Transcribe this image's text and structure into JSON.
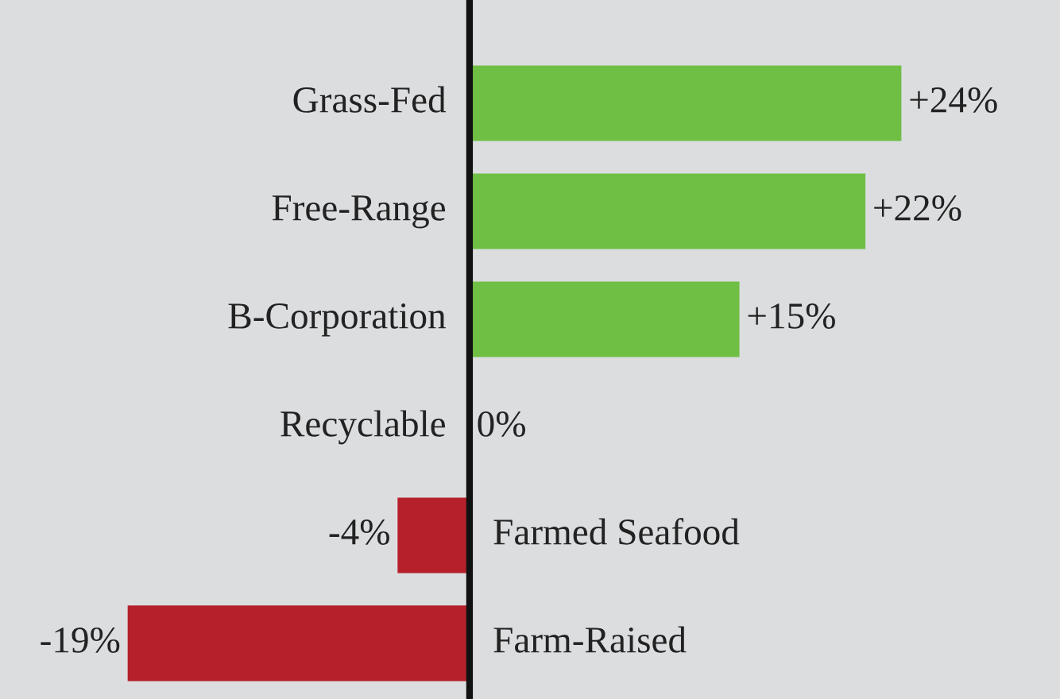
{
  "chart_data": {
    "type": "bar",
    "orientation": "horizontal",
    "categories": [
      "Grass-Fed",
      "Free-Range",
      "B-Corporation",
      "Recyclable",
      "Farmed Seafood",
      "Farm-Raised"
    ],
    "values": [
      24,
      22,
      15,
      0,
      -4,
      -19
    ],
    "colors": [
      "#6fbf44",
      "#6fbf44",
      "#6fbf44",
      "#6fbf44",
      "#b5202a",
      "#b5202a"
    ],
    "value_labels": [
      "+24%",
      "+22%",
      "+15%",
      "0%",
      "-4%",
      "-19%"
    ]
  }
}
